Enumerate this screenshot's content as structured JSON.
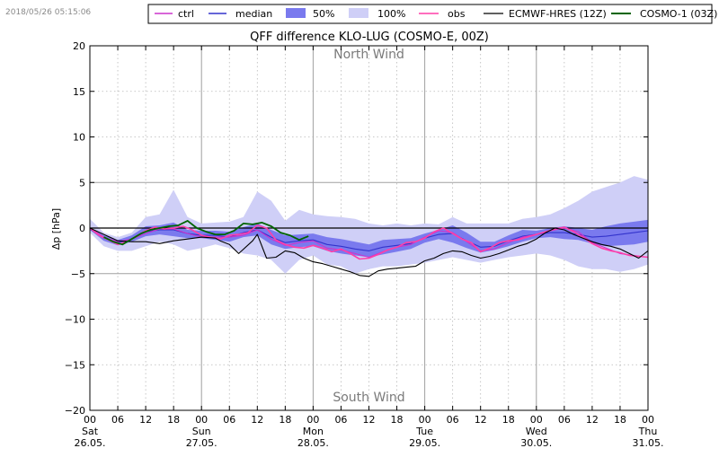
{
  "timestamp": "2018/05/26 05:15:06",
  "chart_data": {
    "type": "line",
    "title": "QFF difference KLO-LUG (COSMO-E, 00Z)",
    "ylabel": "Δp [hPa]",
    "xlabel": "",
    "xlim": [
      0,
      120
    ],
    "ylim": [
      -20,
      20
    ],
    "grid": true,
    "legend_position": "top",
    "yticks": [
      -20,
      -15,
      -10,
      -5,
      0,
      5,
      10,
      15,
      20
    ],
    "xticks": [
      {
        "x": 0,
        "hour": "00",
        "day": "Sat",
        "date": "26.05."
      },
      {
        "x": 6,
        "hour": "06"
      },
      {
        "x": 12,
        "hour": "12"
      },
      {
        "x": 18,
        "hour": "18"
      },
      {
        "x": 24,
        "hour": "00",
        "day": "Sun",
        "date": "27.05."
      },
      {
        "x": 30,
        "hour": "06"
      },
      {
        "x": 36,
        "hour": "12"
      },
      {
        "x": 42,
        "hour": "18"
      },
      {
        "x": 48,
        "hour": "00",
        "day": "Mon",
        "date": "28.05."
      },
      {
        "x": 54,
        "hour": "06"
      },
      {
        "x": 60,
        "hour": "12"
      },
      {
        "x": 66,
        "hour": "18"
      },
      {
        "x": 72,
        "hour": "00",
        "day": "Tue",
        "date": "29.05."
      },
      {
        "x": 78,
        "hour": "06"
      },
      {
        "x": 84,
        "hour": "12"
      },
      {
        "x": 90,
        "hour": "18"
      },
      {
        "x": 96,
        "hour": "00",
        "day": "Wed",
        "date": "30.05."
      },
      {
        "x": 102,
        "hour": "06"
      },
      {
        "x": 108,
        "hour": "12"
      },
      {
        "x": 114,
        "hour": "18"
      },
      {
        "x": 120,
        "hour": "00",
        "day": "Thu",
        "date": "31.05."
      }
    ],
    "annotations": {
      "top": "North Wind",
      "bottom": "South Wind"
    },
    "legend": [
      {
        "key": "ctrl",
        "label": "ctrl",
        "kind": "line",
        "color": "#cc33cc"
      },
      {
        "key": "median",
        "label": "median",
        "kind": "line",
        "color": "#3333cc"
      },
      {
        "key": "p50",
        "label": "50%",
        "kind": "patch",
        "color": "#7a7aee"
      },
      {
        "key": "p100",
        "label": "100%",
        "kind": "patch",
        "color": "#cfcff7"
      },
      {
        "key": "obs",
        "label": "obs",
        "kind": "line",
        "color": "#ff3fa8"
      },
      {
        "key": "hres",
        "label": "ECMWF-HRES (12Z)",
        "kind": "line",
        "color": "#000000"
      },
      {
        "key": "cosmo1",
        "label": "COSMO-1 (03Z)",
        "kind": "line",
        "color": "#006400"
      }
    ],
    "bands": {
      "p100": {
        "x": [
          0,
          3,
          6,
          9,
          12,
          15,
          18,
          21,
          24,
          27,
          30,
          33,
          36,
          39,
          42,
          45,
          48,
          51,
          54,
          57,
          60,
          63,
          66,
          69,
          72,
          75,
          78,
          81,
          84,
          87,
          90,
          93,
          96,
          99,
          102,
          105,
          108,
          111,
          114,
          117,
          120
        ],
        "upper": [
          1,
          -0.5,
          -1,
          -0.5,
          1.2,
          1.5,
          4.2,
          1.2,
          0.5,
          0.6,
          0.7,
          1.2,
          4,
          3,
          0.8,
          2,
          1.5,
          1.3,
          1.2,
          1,
          0.5,
          0.3,
          0.5,
          0.3,
          0.5,
          0.4,
          1.2,
          0.5,
          0.5,
          0.5,
          0.5,
          1,
          1.2,
          1.5,
          2.2,
          3,
          4,
          4.5,
          5,
          5.7,
          5.3
        ],
        "lower": [
          -0.5,
          -2,
          -2.5,
          -2.5,
          -2,
          -1.5,
          -1.8,
          -2.5,
          -2.2,
          -1.8,
          -2.2,
          -2.8,
          -3,
          -3.5,
          -5,
          -3.5,
          -3,
          -4,
          -4.2,
          -5,
          -4.5,
          -4.2,
          -4.2,
          -4,
          -3.8,
          -3.5,
          -3.2,
          -3.5,
          -3.8,
          -3.5,
          -3.2,
          -3,
          -2.8,
          -3,
          -3.5,
          -4.2,
          -4.5,
          -4.5,
          -4.8,
          -4.5,
          -4
        ]
      },
      "p50": {
        "x": [
          0,
          3,
          6,
          9,
          12,
          15,
          18,
          21,
          24,
          27,
          30,
          33,
          36,
          39,
          42,
          45,
          48,
          51,
          54,
          57,
          60,
          63,
          66,
          69,
          72,
          75,
          78,
          81,
          84,
          87,
          90,
          93,
          96,
          99,
          102,
          105,
          108,
          111,
          114,
          117,
          120
        ],
        "upper": [
          0,
          -0.8,
          -1.3,
          -0.8,
          0.2,
          0.3,
          0.6,
          -0.2,
          -0.3,
          -0.3,
          -0.4,
          0.1,
          0.5,
          -0.2,
          -0.8,
          -0.7,
          -0.6,
          -1,
          -1.2,
          -1.5,
          -1.8,
          -1.3,
          -1.2,
          -1.1,
          -0.6,
          -0.2,
          0.3,
          -0.5,
          -1.5,
          -1.5,
          -0.8,
          -0.2,
          -0.3,
          0,
          0.2,
          0,
          -0.2,
          0.2,
          0.5,
          0.7,
          0.9
        ],
        "lower": [
          -0.2,
          -1.4,
          -1.9,
          -1.5,
          -0.9,
          -0.7,
          -0.9,
          -1.1,
          -1.1,
          -1.3,
          -1.5,
          -1,
          -0.8,
          -1.8,
          -2.3,
          -2.1,
          -2,
          -2.5,
          -2.8,
          -3,
          -3.2,
          -2.9,
          -2.6,
          -2.3,
          -1.6,
          -1.2,
          -1.6,
          -2.2,
          -2.7,
          -2.4,
          -2,
          -1.5,
          -1.1,
          -1,
          -1.2,
          -1.3,
          -1.7,
          -2,
          -1.9,
          -1.8,
          -1.5
        ]
      }
    },
    "series": [
      {
        "name": "median",
        "key": "median",
        "color": "#3333cc",
        "width": 1.1,
        "x": [
          0,
          3,
          6,
          9,
          12,
          15,
          18,
          21,
          24,
          27,
          30,
          33,
          36,
          39,
          42,
          45,
          48,
          51,
          54,
          57,
          60,
          63,
          66,
          69,
          72,
          75,
          78,
          81,
          84,
          87,
          90,
          93,
          96,
          99,
          102,
          105,
          108,
          111,
          114,
          117,
          120
        ],
        "y": [
          -0.1,
          -1.1,
          -1.6,
          -1.2,
          -0.4,
          -0.2,
          -0.2,
          -0.6,
          -0.8,
          -0.8,
          -1,
          -0.5,
          -0.2,
          -1,
          -1.6,
          -1.4,
          -1.3,
          -1.8,
          -2,
          -2.3,
          -2.5,
          -2.1,
          -1.9,
          -1.7,
          -1.1,
          -0.7,
          -0.6,
          -1.4,
          -2.1,
          -2,
          -1.4,
          -0.9,
          -0.7,
          -0.5,
          -0.5,
          -0.7,
          -1,
          -0.9,
          -0.7,
          -0.5,
          -0.3
        ]
      },
      {
        "name": "ctrl",
        "key": "ctrl",
        "color": "#cc33cc",
        "width": 1.1,
        "x": [
          0,
          3,
          6,
          9,
          12,
          15,
          18,
          21,
          24,
          27,
          30,
          33,
          36,
          39,
          42,
          45,
          48,
          51,
          54,
          57,
          60,
          63,
          66,
          69,
          72,
          75,
          78,
          81,
          84,
          87,
          90,
          93,
          96,
          99,
          102,
          105,
          108,
          111,
          114,
          117,
          120
        ],
        "y": [
          0,
          -1,
          -1.5,
          -1.2,
          -0.6,
          -0.1,
          -0.1,
          -0.6,
          -1,
          -1,
          -1,
          -0.8,
          -0.2,
          -1.2,
          -1.9,
          -1.6,
          -1.4,
          -2.2,
          -2.4,
          -2.8,
          -3.2,
          -2.6,
          -2.1,
          -1.8,
          -1,
          -0.3,
          -0.5,
          -1.5,
          -2.5,
          -2.3,
          -1.6,
          -1,
          -0.7,
          -0.3,
          0,
          -0.4,
          -1.6,
          -2.2,
          -2.8,
          -3,
          -3.2
        ]
      },
      {
        "name": "obs",
        "key": "obs",
        "color": "#ff3fa8",
        "width": 1.6,
        "x": [
          0,
          2,
          4,
          6,
          8,
          10,
          12,
          14,
          16,
          18,
          20,
          22,
          24,
          26,
          28,
          30,
          32,
          34,
          36,
          38,
          40,
          42,
          44,
          46,
          48,
          50,
          52,
          54,
          56,
          58,
          60,
          62,
          64,
          66,
          68,
          70,
          72,
          74,
          76,
          78,
          80,
          82,
          84,
          86,
          88,
          90,
          92,
          94,
          96,
          98,
          100,
          102,
          104,
          106,
          108,
          110,
          112,
          114,
          116,
          118,
          120
        ],
        "y": [
          0,
          -0.8,
          -1.3,
          -1.8,
          -1.5,
          -0.9,
          -0.3,
          0.1,
          -0.1,
          0,
          0.2,
          -0.2,
          -0.8,
          -1,
          -1.2,
          -0.8,
          -0.7,
          -0.5,
          0.3,
          0,
          -1.3,
          -1.8,
          -2.1,
          -2.2,
          -1.9,
          -2.2,
          -2.6,
          -2.3,
          -2.8,
          -3.4,
          -3.3,
          -2.9,
          -2.4,
          -2.1,
          -1.6,
          -1.5,
          -1.1,
          -0.4,
          0,
          -0.6,
          -1.2,
          -1.6,
          -2.6,
          -2.2,
          -1.6,
          -1.4,
          -1.3,
          -1,
          -0.7,
          -0.4,
          -0.1,
          0.1,
          -0.4,
          -1,
          -1.7,
          -2.2,
          -2.5,
          -2.7,
          -3,
          -3.1,
          -3.2
        ]
      },
      {
        "name": "ECMWF-HRES (12Z)",
        "key": "hres",
        "color": "#000000",
        "width": 1.1,
        "x": [
          0,
          3,
          6,
          9,
          12,
          15,
          18,
          21,
          24,
          27,
          28,
          30,
          32,
          35,
          36,
          38,
          40,
          42,
          44,
          46,
          48,
          50,
          52,
          54,
          56,
          58,
          60,
          62,
          64,
          66,
          68,
          70,
          72,
          74,
          76,
          78,
          80,
          82,
          84,
          86,
          88,
          90,
          92,
          94,
          96,
          98,
          100,
          102,
          104,
          106,
          108,
          110,
          112,
          114,
          116,
          118,
          120
        ],
        "y": [
          0,
          -0.7,
          -1.4,
          -1.5,
          -1.5,
          -1.7,
          -1.4,
          -1.2,
          -1,
          -1.1,
          -1.4,
          -1.8,
          -2.8,
          -1.4,
          -0.7,
          -3.3,
          -3.2,
          -2.5,
          -2.7,
          -3.3,
          -3.7,
          -3.9,
          -4.2,
          -4.5,
          -4.8,
          -5.2,
          -5.3,
          -4.7,
          -4.5,
          -4.4,
          -4.3,
          -4.2,
          -3.6,
          -3.3,
          -2.8,
          -2.5,
          -2.6,
          -3,
          -3.3,
          -3.1,
          -2.8,
          -2.4,
          -2,
          -1.7,
          -1.2,
          -0.5,
          0,
          -0.2,
          -0.7,
          -1.1,
          -1.5,
          -1.8,
          -2,
          -2.3,
          -2.8,
          -3.3,
          -2.5
        ]
      },
      {
        "name": "COSMO-1 (03Z)",
        "key": "cosmo1",
        "color": "#006400",
        "width": 1.8,
        "x": [
          3,
          5,
          7,
          9,
          11,
          13,
          15,
          17,
          19,
          21,
          23,
          25,
          27,
          29,
          31,
          33,
          35,
          37,
          39,
          41,
          43,
          45,
          47
        ],
        "y": [
          -1,
          -1.5,
          -1.8,
          -1.2,
          -0.6,
          -0.2,
          0,
          0.2,
          0.3,
          0.8,
          0,
          -0.4,
          -0.7,
          -0.7,
          -0.3,
          0.5,
          0.4,
          0.6,
          0.2,
          -0.5,
          -0.8,
          -1.3,
          -0.9
        ]
      }
    ]
  }
}
